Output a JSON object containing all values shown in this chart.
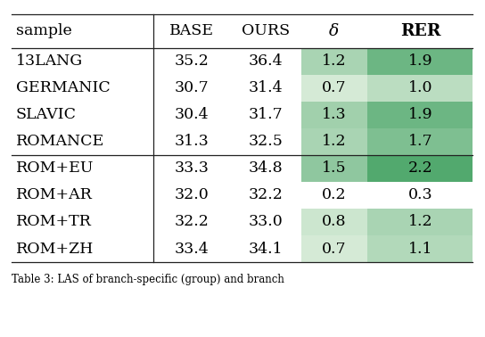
{
  "rows": [
    {
      "sample": "13LANG",
      "base": "35.2",
      "ours": "36.4",
      "delta": 1.2,
      "rer": 1.9
    },
    {
      "sample": "GERMANIC",
      "base": "30.7",
      "ours": "31.4",
      "delta": 0.7,
      "rer": 1.0
    },
    {
      "sample": "SLAVIC",
      "base": "30.4",
      "ours": "31.7",
      "delta": 1.3,
      "rer": 1.9
    },
    {
      "sample": "ROMANCE",
      "base": "31.3",
      "ours": "32.5",
      "delta": 1.2,
      "rer": 1.7
    },
    {
      "sample": "ROM+EU",
      "base": "33.3",
      "ours": "34.8",
      "delta": 1.5,
      "rer": 2.2
    },
    {
      "sample": "ROM+AR",
      "base": "32.0",
      "ours": "32.2",
      "delta": 0.2,
      "rer": 0.3
    },
    {
      "sample": "ROM+TR",
      "base": "32.2",
      "ours": "33.0",
      "delta": 0.8,
      "rer": 1.2
    },
    {
      "sample": "ROM+ZH",
      "base": "33.4",
      "ours": "34.1",
      "delta": 0.7,
      "rer": 1.1
    }
  ],
  "col_headers": [
    "sample",
    "BASE",
    "OURS",
    "δ",
    "RER"
  ],
  "highlight_threshold": 0.5,
  "color_min": "#d5ead6",
  "color_max": "#52a96e",
  "bg_color": "#ffffff",
  "font_size": 12.5,
  "header_font_size": 12.5,
  "fig_width": 5.44,
  "fig_height": 3.78,
  "caption": "Table 3: LAS of branch-specific (group) and branch"
}
